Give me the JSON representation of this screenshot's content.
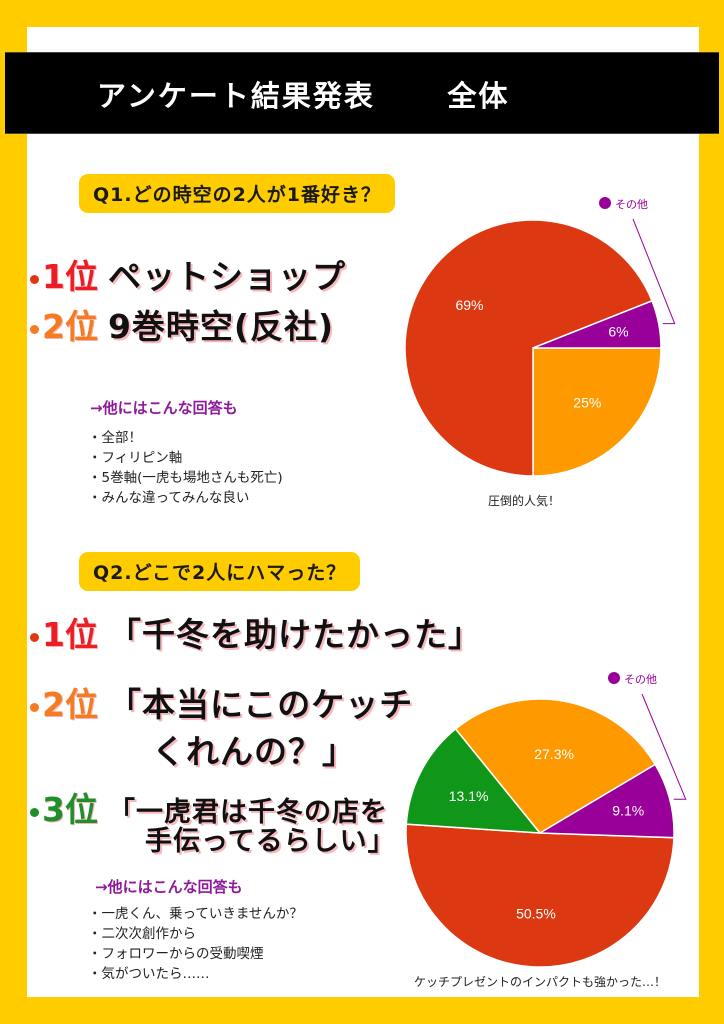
{
  "banner": {
    "title": "アンケート結果発表",
    "scope": "全体"
  },
  "colors": {
    "frame": "#ffcc00",
    "red": "#dc3912",
    "orange": "#ff9900",
    "purple": "#990099",
    "green": "#109618",
    "rank1": "#ee1c25",
    "rank2": "#f47b20",
    "rank3": "#1e8f2a",
    "others_head": "#8e1a9b"
  },
  "q1": {
    "question": "Q1.どの時空の2人が1番好き？",
    "ranks": [
      {
        "label": "1位",
        "text": "ペットショップ"
      },
      {
        "label": "2位",
        "text": "9巻時空(反社)"
      }
    ],
    "others_head": "→他にはこんな回答も",
    "others": [
      "全部！",
      "フィリピン軸",
      "5巻軸(一虎も場地さんも死亡)",
      "みんな違ってみんな良い"
    ],
    "caption": "圧倒的人気！",
    "legend_label": "その他"
  },
  "q2": {
    "question": "Q2.どこで2人にハマった？",
    "ranks": [
      {
        "label": "1位",
        "text": "「千冬を助けたかった」"
      },
      {
        "label": "2位",
        "text_line1": "「本当にこのケッチ",
        "text_line2": "くれんの？」"
      },
      {
        "label": "3位",
        "text_line1": "「一虎君は千冬の店を",
        "text_line2": "手伝ってるらしい」"
      }
    ],
    "others_head": "→他にはこんな回答も",
    "others": [
      "一虎くん、乗っていきませんか？",
      "二次次創作から",
      "フォロワーからの受動喫煙",
      "気がついたら……"
    ],
    "caption": "ケッチプレゼントのインパクトも強かった…！",
    "legend_label": "その他"
  },
  "chart_data": [
    {
      "type": "pie",
      "title": "Q1.どの時空の2人が1番好き？",
      "categories": [
        "ペットショップ",
        "9巻時空(反社)",
        "その他"
      ],
      "values": [
        69,
        25,
        6
      ],
      "labels": [
        "69%",
        "25%",
        "6%"
      ],
      "colors": [
        "#dc3912",
        "#ff9900",
        "#990099"
      ],
      "legend": [
        "その他"
      ],
      "caption": "圧倒的人気！"
    },
    {
      "type": "pie",
      "title": "Q2.どこで2人にハマった？",
      "categories": [
        "「千冬を助けたかった」",
        "「本当にこのケッチくれんの？」",
        "「一虎君は千冬の店を手伝ってるらしい」",
        "その他"
      ],
      "values": [
        50.5,
        27.3,
        13.1,
        9.1
      ],
      "labels": [
        "50.5%",
        "27.3%",
        "13.1%",
        "9.1%"
      ],
      "colors": [
        "#dc3912",
        "#ff9900",
        "#109618",
        "#990099"
      ],
      "legend": [
        "その他"
      ],
      "caption": "ケッチプレゼントのインパクトも強かった…！"
    }
  ]
}
